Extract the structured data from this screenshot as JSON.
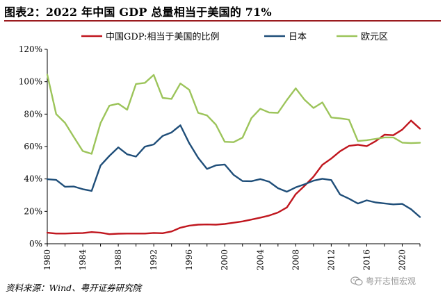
{
  "title": "图表2：2022 年中国 GDP 总量相当于美国的 71%",
  "source": "资料来源：Wind、粤开证券研究院",
  "watermark": "粤开志恒宏观",
  "chart_data": {
    "type": "line",
    "xlim": [
      1980,
      2022
    ],
    "ylim": [
      0,
      120
    ],
    "x_ticks": [
      "1980",
      "1984",
      "1988",
      "1992",
      "1996",
      "2000",
      "2004",
      "2008",
      "2012",
      "2016",
      "2020"
    ],
    "y_ticks": [
      "0%",
      "20%",
      "40%",
      "60%",
      "80%",
      "100%",
      "120%"
    ],
    "legend_position": "top",
    "grid": false,
    "x": [
      1980,
      1981,
      1982,
      1983,
      1984,
      1985,
      1986,
      1987,
      1988,
      1989,
      1990,
      1991,
      1992,
      1993,
      1994,
      1995,
      1996,
      1997,
      1998,
      1999,
      2000,
      2001,
      2002,
      2003,
      2004,
      2005,
      2006,
      2007,
      2008,
      2009,
      2010,
      2011,
      2012,
      2013,
      2014,
      2015,
      2016,
      2017,
      2018,
      2019,
      2020,
      2021,
      2022
    ],
    "series": [
      {
        "name": "中国GDP:相当于美国的比例",
        "color": "#c0161e",
        "values": [
          6.8,
          6.3,
          6.3,
          6.5,
          6.6,
          7.2,
          6.8,
          5.9,
          6.2,
          6.3,
          6.3,
          6.3,
          6.7,
          6.5,
          7.6,
          9.9,
          11.2,
          11.8,
          11.9,
          11.8,
          12.2,
          13.0,
          13.8,
          14.9,
          16.1,
          17.4,
          19.3,
          22.4,
          30.6,
          35.8,
          41.4,
          48.7,
          52.6,
          57.1,
          60.4,
          61.1,
          60.2,
          63.3,
          67.3,
          67.0,
          70.4,
          76.0,
          71.0
        ]
      },
      {
        "name": "日本",
        "color": "#1f4e79",
        "values": [
          39.8,
          39.4,
          35.2,
          35.3,
          33.7,
          32.6,
          48.3,
          54.2,
          59.5,
          55.2,
          53.8,
          59.9,
          61.3,
          66.5,
          68.7,
          73.1,
          62.0,
          53.0,
          46.2,
          48.4,
          48.9,
          42.5,
          38.7,
          38.6,
          39.9,
          38.3,
          34.3,
          32.1,
          34.8,
          36.7,
          38.9,
          40.1,
          39.3,
          30.4,
          27.8,
          24.8,
          26.8,
          25.5,
          24.9,
          24.3,
          24.6,
          21.3,
          16.5
        ]
      },
      {
        "name": "欧元区",
        "color": "#9cc45a",
        "values": [
          104.3,
          80.0,
          74.6,
          65.8,
          57.2,
          55.5,
          74.5,
          85.2,
          86.5,
          82.7,
          98.6,
          99.3,
          104.2,
          90.0,
          89.4,
          98.9,
          95.0,
          80.8,
          79.2,
          73.5,
          62.9,
          62.7,
          65.5,
          77.5,
          83.3,
          81.0,
          80.8,
          88.7,
          95.9,
          88.8,
          83.8,
          87.2,
          77.9,
          77.4,
          76.6,
          63.4,
          63.9,
          64.7,
          65.6,
          65.6,
          62.4,
          62.1,
          62.3
        ]
      }
    ]
  }
}
